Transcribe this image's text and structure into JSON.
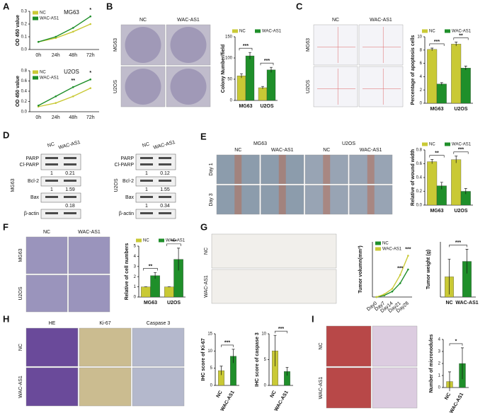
{
  "panel_letters": [
    "A",
    "B",
    "C",
    "D",
    "E",
    "F",
    "G",
    "H",
    "I"
  ],
  "images": {
    "B": {
      "columns": [
        "NC",
        "WAC-AS1"
      ],
      "rows": [
        "MG63",
        "U2OS"
      ]
    },
    "C": {
      "columns": [
        "NC",
        "WAC-AS1"
      ],
      "rows": [
        "MG63",
        "U2OS"
      ]
    },
    "E": {
      "groups": [
        "MG63",
        "U2OS"
      ],
      "columns": [
        "NC",
        "WAC-AS1",
        "NC",
        "WAC-AS1"
      ],
      "rows": [
        "Day 1",
        "Day 3"
      ]
    },
    "F": {
      "columns": [
        "NC",
        "WAC-AS1"
      ],
      "rows": [
        "MG63",
        "U2OS"
      ]
    },
    "G": {
      "rows": [
        "NC",
        "WAC-AS1"
      ]
    },
    "H": {
      "columns": [
        "HE",
        "Ki-67",
        "Caspase 3"
      ],
      "rows": [
        "NC",
        "WAC-AS1"
      ]
    },
    "I": {
      "rows": [
        "NC",
        "WAC-AS1"
      ]
    }
  },
  "blots": [
    {
      "cell_line": "MG63",
      "columns": [
        "NC",
        "WAC-AS1"
      ],
      "rows": [
        {
          "labels": [
            "PARP",
            "Cl-PARP"
          ],
          "quant": [
            1,
            0.21
          ]
        },
        {
          "labels": [
            "Bcl-2"
          ],
          "quant": [
            1,
            1.59
          ]
        },
        {
          "labels": [
            "Bax"
          ],
          "quant": [
            null,
            0.18
          ]
        },
        {
          "labels": [
            "β-actin"
          ]
        }
      ]
    },
    {
      "cell_line": "U2OS",
      "columns": [
        "NC",
        "WAC-AS1"
      ],
      "rows": [
        {
          "labels": [
            "PARP",
            "Cl-PARP"
          ],
          "quant": [
            1,
            0.12
          ]
        },
        {
          "labels": [
            "Bcl-2"
          ],
          "quant": [
            1,
            1.55
          ]
        },
        {
          "labels": [
            "Bax"
          ],
          "quant": [
            1,
            0.34
          ]
        },
        {
          "labels": [
            "β-actin"
          ]
        }
      ]
    }
  ],
  "chart_data": [
    {
      "type": "line",
      "title": "MG63",
      "y_label": "OD 450 value",
      "categories": [
        "0h",
        "24h",
        "48h",
        "72h"
      ],
      "series": [
        {
          "name": "NC",
          "color": "#c9c935",
          "values": [
            0.06,
            0.09,
            0.14,
            0.2
          ]
        },
        {
          "name": "WAC-AS1",
          "color": "#1f8f2a",
          "values": [
            0.06,
            0.1,
            0.17,
            0.26
          ]
        }
      ],
      "ylim": [
        0,
        0.3
      ],
      "yticks": [
        {
          "value": 0,
          "label": "0.0"
        },
        0.1,
        0.2,
        0.3
      ],
      "legend": "upper left",
      "annotations": [
        null,
        null,
        null,
        "*"
      ]
    },
    {
      "type": "line",
      "title": "U2OS",
      "y_label": "OD 450 value",
      "categories": [
        "0h",
        "24h",
        "48h",
        "72h"
      ],
      "series": [
        {
          "name": "NC",
          "color": "#c9c935",
          "values": [
            0.1,
            0.17,
            0.3,
            0.46
          ]
        },
        {
          "name": "WAC-AS1",
          "color": "#1f8f2a",
          "values": [
            0.12,
            0.3,
            0.48,
            0.63
          ]
        }
      ],
      "ylim": [
        0,
        0.8
      ],
      "yticks": [
        {
          "value": 0,
          "label": "0.0"
        },
        0.2,
        0.4,
        0.6,
        0.8
      ],
      "legend": "upper left",
      "annotations": [
        null,
        null,
        "**",
        "*"
      ]
    },
    {
      "type": "bar",
      "y_label": "Colony Number/field",
      "categories": [
        "MG63",
        "U2OS"
      ],
      "series": [
        {
          "name": "NC",
          "color": "#c9c935",
          "values": [
            58,
            30
          ],
          "errors": [
            5,
            3
          ]
        },
        {
          "name": "WAC-AS1",
          "color": "#1f8f2a",
          "values": [
            105,
            72
          ],
          "errors": [
            8,
            6
          ]
        }
      ],
      "ylim": [
        0,
        150
      ],
      "yticks": [
        0,
        50,
        100,
        150
      ],
      "legend": "top",
      "annotations": [
        "***",
        "***"
      ]
    },
    {
      "type": "bar",
      "y_label": "Percentage of apoptosis cells",
      "categories": [
        "MG63",
        "U2OS"
      ],
      "series": [
        {
          "name": "NC",
          "color": "#c9c935",
          "values": [
            8.1,
            8.9
          ],
          "errors": [
            0.2,
            0.3
          ]
        },
        {
          "name": "WAC-AS1",
          "color": "#1f8f2a",
          "values": [
            2.9,
            5.3
          ],
          "errors": [
            0.2,
            0.3
          ]
        }
      ],
      "ylim": [
        0,
        10
      ],
      "yticks": [
        0,
        2,
        4,
        6,
        8,
        10
      ],
      "legend": "top",
      "annotations": [
        "***",
        "**"
      ]
    },
    {
      "type": "bar",
      "y_label": "Relative of wound width",
      "categories": [
        "MG63",
        "U2OS"
      ],
      "series": [
        {
          "name": "NC",
          "color": "#c9c935",
          "values": [
            0.63,
            0.66
          ],
          "errors": [
            0.03,
            0.05
          ]
        },
        {
          "name": "WAC-AS1",
          "color": "#1f8f2a",
          "values": [
            0.28,
            0.2
          ],
          "errors": [
            0.05,
            0.04
          ]
        }
      ],
      "ylim": [
        0,
        0.8
      ],
      "yticks": [
        {
          "value": 0,
          "label": "0.0"
        },
        0.2,
        0.4,
        0.6,
        0.8
      ],
      "legend": "top",
      "annotations": [
        "**",
        "***"
      ]
    },
    {
      "type": "bar",
      "y_label": "Relative of cell numbers",
      "categories": [
        "MG63",
        "U2OS"
      ],
      "series": [
        {
          "name": "NC",
          "color": "#c9c935",
          "values": [
            1,
            1
          ],
          "errors": [
            0,
            0
          ]
        },
        {
          "name": "WAC-AS1",
          "color": "#1f8f2a",
          "values": [
            2.1,
            3.7
          ],
          "errors": [
            0.3,
            1.1
          ]
        }
      ],
      "ylim": [
        0,
        5
      ],
      "yticks": [
        0,
        1,
        2,
        3,
        4,
        5
      ],
      "legend": "top",
      "annotations": [
        "**",
        "***"
      ]
    },
    {
      "type": "line",
      "y_label": "Tumor volumn(mm³)",
      "categories": [
        "Day0",
        "Day7",
        "Day14",
        "Day21",
        "Day28"
      ],
      "series": [
        {
          "name": "NC",
          "color": "#1f8f2a",
          "values": [
            0,
            3,
            10,
            25,
            50
          ]
        },
        {
          "name": "WAC-AS1",
          "color": "#c9c935",
          "values": [
            0,
            5,
            15,
            40,
            75
          ]
        }
      ],
      "ylim": [
        0,
        100
      ],
      "yticks": [],
      "legend": "upper left",
      "annotations": [
        null,
        null,
        null,
        "***",
        "***"
      ]
    },
    {
      "type": "bar",
      "y_label": "Tumor weight (g)",
      "categories": [
        "NC",
        "WAC-AS1"
      ],
      "values": [
        0.55,
        0.97
      ],
      "errors": [
        0.48,
        0.33
      ],
      "colors": [
        "#c9c935",
        "#1f8f2a"
      ],
      "ylim": [
        0,
        1.5
      ],
      "yticks": [],
      "bracket": "***"
    },
    {
      "type": "bar",
      "y_label": "IHC score of Ki-67",
      "categories": [
        "NC",
        "WAC-AS1"
      ],
      "values": [
        4.3,
        8.5
      ],
      "errors": [
        1.3,
        2.0
      ],
      "colors": [
        "#c9c935",
        "#1f8f2a"
      ],
      "ylim": [
        0,
        15
      ],
      "yticks": [
        0,
        5,
        10,
        15
      ],
      "bracket": "***"
    },
    {
      "type": "bar",
      "y_label": "IHC score of caspase 3",
      "categories": [
        "NC",
        "WAC-AS1"
      ],
      "values": [
        6.7,
        2.7
      ],
      "errors": [
        3,
        0.8
      ],
      "colors": [
        "#c9c935",
        "#1f8f2a"
      ],
      "ylim": [
        0,
        10
      ],
      "yticks": [
        0,
        5,
        10
      ],
      "bracket": "***"
    },
    {
      "type": "bar",
      "y_label": "Number of micronodules",
      "categories": [
        "NC",
        "WAC-AS1"
      ],
      "values": [
        0.5,
        2
      ],
      "errors": [
        0.8,
        1.3
      ],
      "colors": [
        "#c9c935",
        "#1f8f2a"
      ],
      "ylim": [
        0,
        4
      ],
      "yticks": [
        0,
        1,
        2,
        3,
        4
      ],
      "bracket": "*"
    }
  ]
}
